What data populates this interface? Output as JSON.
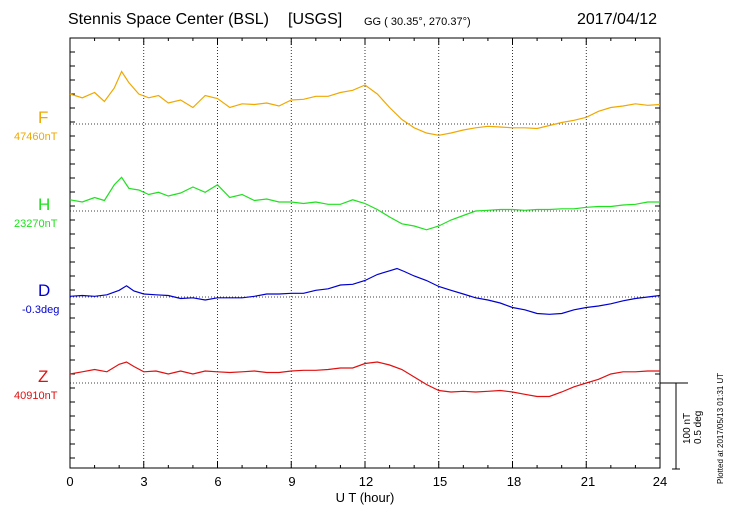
{
  "header": {
    "station": "Stennis Space Center (BSL)",
    "network": "[USGS]",
    "coords": "GG ( 30.35°, 270.37°)",
    "date": "2017/04/12"
  },
  "footer": {
    "plotted_note": "Plotted at 2017/05/13 01:31  UT",
    "scale_line1": "100 nT",
    "scale_line2": "0.5 deg"
  },
  "chart_data": {
    "type": "line",
    "title": "Stennis Space Center (BSL)  [USGS]",
    "xlabel": "U T (hour)",
    "xlim": [
      0,
      24
    ],
    "xticks": [
      "0",
      "3",
      "6",
      "9",
      "12",
      "15",
      "18",
      "21",
      "24"
    ],
    "grid": true,
    "scale": "100 nT / 0.5 deg per scale bar",
    "colors": {
      "F": "#f0a800",
      "H": "#20e020",
      "D": "#0000d0",
      "Z": "#e01010"
    },
    "series": [
      {
        "name": "F",
        "baseline_label": "47460nT",
        "x": [
          0,
          0.5,
          1,
          1.4,
          1.8,
          2.1,
          2.4,
          2.8,
          3.2,
          3.6,
          4.0,
          4.5,
          5.0,
          5.5,
          6.0,
          6.5,
          7.0,
          7.5,
          8.0,
          8.5,
          9.0,
          9.5,
          10.0,
          10.5,
          11.0,
          11.5,
          12.0,
          12.5,
          13.0,
          13.5,
          14.0,
          14.5,
          15.0,
          15.5,
          16.0,
          16.5,
          17.0,
          17.5,
          18.0,
          18.5,
          19.0,
          19.5,
          20.0,
          20.5,
          21.0,
          21.5,
          22.0,
          22.5,
          23.0,
          23.5,
          24.0
        ],
        "y": [
          40,
          35,
          42,
          30,
          48,
          70,
          55,
          40,
          35,
          38,
          28,
          32,
          22,
          38,
          34,
          22,
          27,
          26,
          28,
          24,
          32,
          33,
          37,
          37,
          42,
          45,
          52,
          40,
          22,
          6,
          -5,
          -12,
          -15,
          -12,
          -8,
          -5,
          -3,
          -4,
          -5,
          -5,
          -6,
          -2,
          2,
          5,
          9,
          17,
          22,
          24,
          27,
          25,
          26
        ]
      },
      {
        "name": "H",
        "baseline_label": "23270nT",
        "x": [
          0,
          0.5,
          1,
          1.4,
          1.8,
          2.1,
          2.4,
          2.8,
          3.2,
          3.6,
          4.0,
          4.5,
          5.0,
          5.5,
          6.0,
          6.5,
          7.0,
          7.5,
          8.0,
          8.5,
          9.0,
          9.5,
          10.0,
          10.5,
          11.0,
          11.5,
          12.0,
          12.5,
          13.0,
          13.5,
          14.0,
          14.5,
          15.0,
          15.5,
          16.0,
          16.5,
          17.0,
          17.5,
          18.0,
          18.5,
          19.0,
          19.5,
          20.0,
          20.5,
          21.0,
          21.5,
          22.0,
          22.5,
          23.0,
          23.5,
          24.0
        ],
        "y": [
          15,
          12,
          18,
          14,
          35,
          45,
          30,
          28,
          22,
          25,
          20,
          24,
          32,
          25,
          35,
          18,
          22,
          14,
          16,
          12,
          12,
          10,
          12,
          9,
          9,
          15,
          10,
          2,
          -8,
          -17,
          -20,
          -25,
          -20,
          -12,
          -6,
          0,
          1,
          2,
          2,
          1,
          2,
          2,
          3,
          3,
          5,
          6,
          6,
          8,
          9,
          12,
          12
        ]
      },
      {
        "name": "D",
        "baseline_label": "-0.3deg",
        "x": [
          0,
          0.5,
          1,
          1.5,
          2.0,
          2.3,
          2.6,
          3.0,
          3.5,
          4.0,
          4.5,
          5.0,
          5.5,
          6.0,
          6.5,
          7.0,
          7.5,
          8.0,
          8.5,
          9.0,
          9.5,
          10.0,
          10.5,
          11.0,
          11.5,
          12.0,
          12.5,
          13.0,
          13.3,
          13.6,
          14.0,
          14.5,
          15.0,
          15.5,
          16.0,
          16.5,
          17.0,
          17.5,
          18.0,
          18.5,
          19.0,
          19.5,
          20.0,
          20.5,
          21.0,
          21.5,
          22.0,
          22.5,
          23.0,
          23.5,
          24.0
        ],
        "y": [
          1,
          2,
          1,
          3,
          9,
          15,
          8,
          4,
          3,
          2,
          -2,
          -1,
          -4,
          -1,
          -1,
          -1,
          1,
          4,
          4,
          5,
          5,
          9,
          11,
          16,
          17,
          22,
          30,
          35,
          38,
          34,
          28,
          22,
          14,
          9,
          4,
          -1,
          -4,
          -8,
          -14,
          -17,
          -22,
          -23,
          -22,
          -17,
          -14,
          -12,
          -9,
          -5,
          -2,
          0,
          2
        ]
      },
      {
        "name": "Z",
        "baseline_label": "40910nT",
        "x": [
          0,
          0.5,
          1,
          1.5,
          2.0,
          2.3,
          2.6,
          3.0,
          3.5,
          4.0,
          4.5,
          5.0,
          5.5,
          6.0,
          6.5,
          7.0,
          7.5,
          8.0,
          8.5,
          9.0,
          9.5,
          10.0,
          10.5,
          11.0,
          11.5,
          12.0,
          12.5,
          13.0,
          13.5,
          14.0,
          14.5,
          15.0,
          15.5,
          16.0,
          16.5,
          17.0,
          17.5,
          18.0,
          18.5,
          19.0,
          19.5,
          20.0,
          20.5,
          21.0,
          21.5,
          22.0,
          22.5,
          23.0,
          23.5,
          24.0
        ],
        "y": [
          12,
          15,
          18,
          15,
          25,
          28,
          22,
          15,
          16,
          12,
          16,
          12,
          16,
          15,
          14,
          15,
          16,
          14,
          14,
          16,
          17,
          17,
          18,
          20,
          20,
          26,
          28,
          24,
          18,
          8,
          -2,
          -10,
          -12,
          -11,
          -12,
          -11,
          -10,
          -12,
          -15,
          -18,
          -18,
          -12,
          -5,
          0,
          5,
          12,
          15,
          15,
          16,
          16
        ]
      }
    ]
  }
}
